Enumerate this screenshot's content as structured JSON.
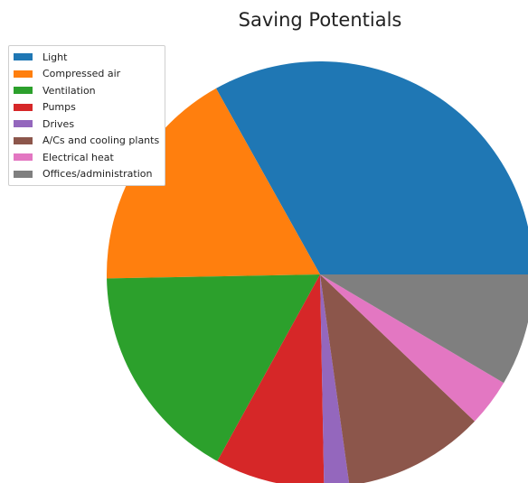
{
  "chart_data": {
    "type": "pie",
    "title": "Saving Potentials",
    "labels": [
      "Light",
      "Compressed air",
      "Ventilation",
      "Pumps",
      "Drives",
      "A/Cs and cooling plants",
      "Electrical heat",
      "Offices/administration"
    ],
    "values": [
      33.1,
      17.2,
      16.7,
      8.3,
      1.9,
      10.7,
      3.6,
      8.5
    ],
    "colors": [
      "#1f77b4",
      "#ff7f0e",
      "#2ca02c",
      "#d62728",
      "#9467bd",
      "#8c564b",
      "#e377c2",
      "#7f7f7f"
    ],
    "start_angle_deg": 0,
    "direction": "counterclockwise",
    "legend_position": "upper-left"
  }
}
